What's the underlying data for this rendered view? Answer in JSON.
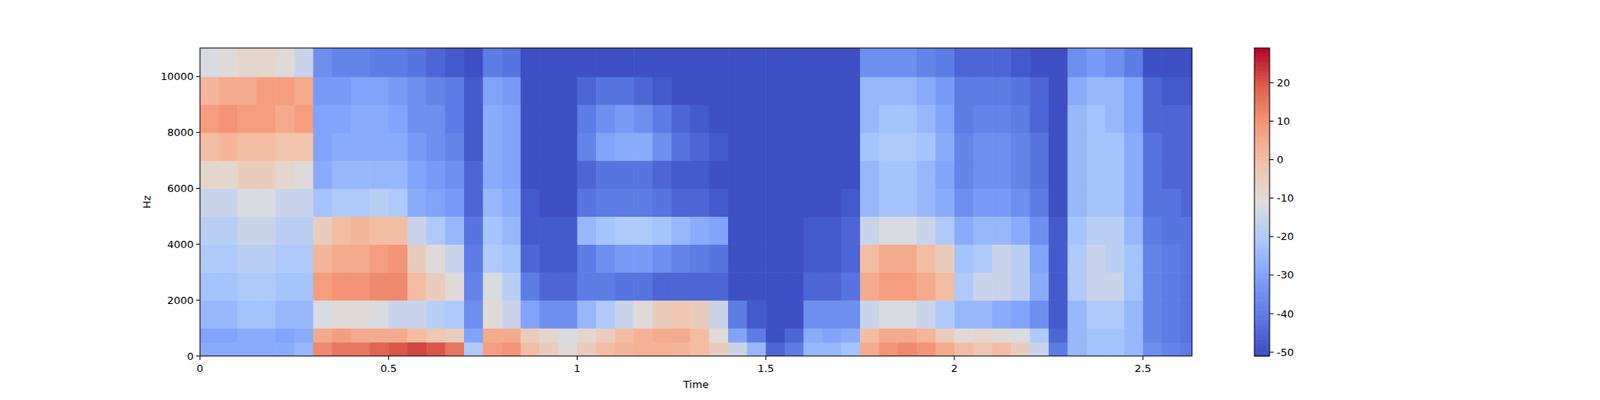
{
  "chart_data": {
    "type": "heatmap",
    "x_label": "Time",
    "y_label": "Hz",
    "xlim": [
      0,
      2.63
    ],
    "ylim": [
      0,
      11025
    ],
    "xticks": [
      0,
      0.5,
      1,
      1.5,
      2,
      2.5
    ],
    "yticks": [
      0,
      2000,
      4000,
      6000,
      8000,
      10000
    ],
    "color": "coolwarm",
    "x_bins": [
      0,
      0.05,
      0.1,
      0.15,
      0.2,
      0.25,
      0.3,
      0.35,
      0.4,
      0.45,
      0.5,
      0.55,
      0.6,
      0.65,
      0.7,
      0.75,
      0.8,
      0.85,
      0.9,
      0.95,
      1,
      1.05,
      1.1,
      1.15,
      1.2,
      1.25,
      1.3,
      1.35,
      1.4,
      1.45,
      1.5,
      1.55,
      1.6,
      1.65,
      1.7,
      1.75,
      1.8,
      1.85,
      1.9,
      1.95,
      2,
      2.05,
      2.1,
      2.15,
      2.2,
      2.25,
      2.3,
      2.35,
      2.4,
      2.45,
      2.5,
      2.55,
      2.6,
      2.63
    ],
    "y_bins": [
      0,
      500,
      1000,
      2000,
      3000,
      4000,
      5000,
      6000,
      7000,
      8000,
      9000,
      10000,
      11025
    ],
    "cells": [
      [
        -28,
        -28,
        -28,
        -28,
        -28,
        -25,
        12,
        15,
        15,
        18,
        20,
        22,
        20,
        15,
        -20,
        8,
        10,
        0,
        -5,
        -10,
        -5,
        0,
        2,
        3,
        3,
        2,
        0,
        -5,
        -15,
        -25,
        -45,
        -40,
        -25,
        -25,
        -22,
        5,
        10,
        12,
        10,
        5,
        0,
        -3,
        0,
        -5,
        -15,
        -40,
        -25,
        -22,
        -22,
        -25,
        -35,
        -38,
        -40
      ],
      [
        -30,
        -30,
        -28,
        -28,
        -30,
        -28,
        5,
        8,
        5,
        5,
        5,
        0,
        -3,
        -5,
        -30,
        5,
        5,
        -5,
        -8,
        -12,
        -8,
        -5,
        0,
        3,
        5,
        5,
        0,
        -10,
        -30,
        -40,
        -50,
        -45,
        -28,
        -30,
        -28,
        0,
        5,
        5,
        2,
        -5,
        -10,
        -8,
        -10,
        -12,
        -20,
        -45,
        -25,
        -22,
        -22,
        -25,
        -38,
        -40,
        -42
      ],
      [
        -25,
        -25,
        -22,
        -22,
        -25,
        -25,
        -12,
        -10,
        -10,
        -12,
        -15,
        -15,
        -18,
        -20,
        -35,
        -10,
        -15,
        -30,
        -35,
        -35,
        -25,
        -20,
        -15,
        -10,
        -5,
        -3,
        -5,
        -15,
        -40,
        -48,
        -50,
        -50,
        -35,
        -35,
        -35,
        -15,
        -12,
        -12,
        -15,
        -20,
        -25,
        -25,
        -28,
        -30,
        -35,
        -48,
        -25,
        -20,
        -20,
        -25,
        -38,
        -40,
        -42
      ],
      [
        -22,
        -22,
        -20,
        -20,
        -22,
        -22,
        8,
        10,
        10,
        12,
        12,
        0,
        -5,
        -10,
        -38,
        -12,
        -18,
        -40,
        -45,
        -45,
        -40,
        -40,
        -42,
        -42,
        -45,
        -45,
        -45,
        -45,
        -50,
        -50,
        -50,
        -50,
        -45,
        -45,
        -42,
        5,
        8,
        8,
        5,
        0,
        -20,
        -15,
        -15,
        -18,
        -28,
        -48,
        -20,
        -15,
        -15,
        -22,
        -38,
        -40,
        -42
      ],
      [
        -20,
        -20,
        -18,
        -18,
        -20,
        -20,
        2,
        5,
        5,
        8,
        10,
        -5,
        -10,
        -15,
        -40,
        -20,
        -22,
        -45,
        -48,
        -48,
        -40,
        -35,
        -32,
        -32,
        -35,
        -38,
        -40,
        -42,
        -50,
        -50,
        -50,
        -50,
        -48,
        -48,
        -45,
        0,
        5,
        5,
        0,
        -5,
        -22,
        -20,
        -15,
        -18,
        -30,
        -48,
        -20,
        -15,
        -18,
        -22,
        -38,
        -40,
        -42
      ],
      [
        -18,
        -18,
        -15,
        -15,
        -18,
        -18,
        -5,
        0,
        2,
        0,
        0,
        -15,
        -20,
        -25,
        -42,
        -22,
        -25,
        -48,
        -48,
        -48,
        -25,
        -22,
        -20,
        -20,
        -22,
        -25,
        -28,
        -30,
        -50,
        -50,
        -50,
        -50,
        -48,
        -48,
        -45,
        -15,
        -12,
        -12,
        -15,
        -20,
        -28,
        -25,
        -25,
        -28,
        -35,
        -48,
        -22,
        -18,
        -18,
        -25,
        -40,
        -42,
        -42
      ],
      [
        -15,
        -15,
        -12,
        -12,
        -15,
        -15,
        -22,
        -20,
        -20,
        -18,
        -20,
        -28,
        -30,
        -32,
        -45,
        -25,
        -28,
        -48,
        -50,
        -50,
        -42,
        -40,
        -40,
        -40,
        -42,
        -45,
        -45,
        -48,
        -50,
        -50,
        -50,
        -50,
        -50,
        -50,
        -48,
        -25,
        -22,
        -22,
        -25,
        -28,
        -35,
        -32,
        -32,
        -35,
        -40,
        -50,
        -25,
        -22,
        -22,
        -28,
        -42,
        -42,
        -45
      ],
      [
        -8,
        -8,
        -5,
        -5,
        -8,
        -10,
        -28,
        -25,
        -25,
        -25,
        -25,
        -30,
        -32,
        -35,
        -45,
        -28,
        -30,
        -50,
        -50,
        -50,
        -45,
        -42,
        -42,
        -42,
        -45,
        -48,
        -48,
        -50,
        -50,
        -50,
        -50,
        -50,
        -50,
        -50,
        -50,
        -25,
        -22,
        -22,
        -25,
        -30,
        -38,
        -35,
        -35,
        -38,
        -42,
        -50,
        -25,
        -22,
        -22,
        -28,
        -42,
        -45,
        -45
      ],
      [
        0,
        2,
        0,
        0,
        -2,
        -2,
        -30,
        -28,
        -28,
        -28,
        -28,
        -32,
        -35,
        -38,
        -48,
        -28,
        -30,
        -50,
        -50,
        -50,
        -38,
        -30,
        -28,
        -28,
        -35,
        -42,
        -45,
        -48,
        -50,
        -50,
        -50,
        -50,
        -50,
        -50,
        -50,
        -22,
        -20,
        -20,
        -22,
        -28,
        -38,
        -35,
        -35,
        -38,
        -42,
        -50,
        -25,
        -22,
        -22,
        -28,
        -42,
        -45,
        -45
      ],
      [
        8,
        10,
        8,
        8,
        5,
        8,
        -30,
        -30,
        -28,
        -28,
        -30,
        -35,
        -35,
        -40,
        -48,
        -28,
        -30,
        -50,
        -50,
        -50,
        -40,
        -35,
        -32,
        -35,
        -40,
        -45,
        -48,
        -50,
        -50,
        -50,
        -50,
        -50,
        -50,
        -50,
        -50,
        -25,
        -22,
        -22,
        -25,
        -30,
        -40,
        -38,
        -38,
        -40,
        -45,
        -50,
        -25,
        -22,
        -25,
        -30,
        -45,
        -45,
        -45
      ],
      [
        2,
        5,
        5,
        8,
        8,
        5,
        -32,
        -32,
        -30,
        -30,
        -32,
        -35,
        -38,
        -40,
        -48,
        -30,
        -32,
        -50,
        -50,
        -50,
        -45,
        -42,
        -42,
        -45,
        -48,
        -50,
        -50,
        -50,
        -50,
        -50,
        -50,
        -50,
        -50,
        -50,
        -50,
        -25,
        -25,
        -25,
        -28,
        -32,
        -40,
        -40,
        -40,
        -42,
        -45,
        -50,
        -28,
        -25,
        -25,
        -30,
        -45,
        -48,
        -48
      ],
      [
        -12,
        -10,
        -8,
        -8,
        -10,
        -15,
        -35,
        -38,
        -38,
        -40,
        -40,
        -42,
        -45,
        -48,
        -50,
        -40,
        -42,
        -50,
        -50,
        -50,
        -50,
        -50,
        -50,
        -50,
        -50,
        -50,
        -50,
        -50,
        -50,
        -50,
        -50,
        -50,
        -50,
        -50,
        -50,
        -35,
        -35,
        -35,
        -38,
        -40,
        -45,
        -45,
        -45,
        -48,
        -50,
        -50,
        -35,
        -32,
        -35,
        -40,
        -50,
        -50,
        -50
      ]
    ],
    "colorbar": {
      "range": [
        -51,
        29
      ],
      "ticks": [
        -50,
        -40,
        -30,
        -20,
        -10,
        0,
        10,
        20
      ]
    }
  }
}
